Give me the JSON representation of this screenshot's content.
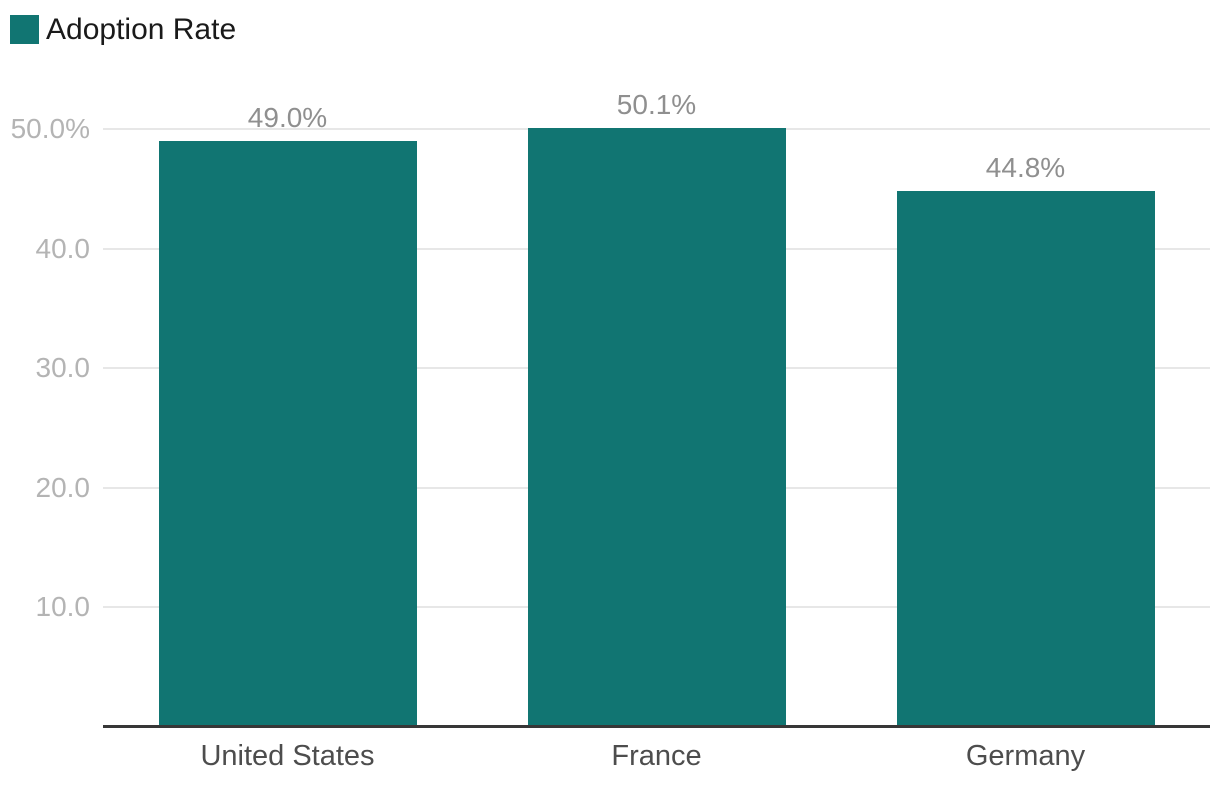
{
  "chart_data": {
    "type": "bar",
    "title": "",
    "xlabel": "",
    "ylabel": "",
    "legend": {
      "label": "Adoption Rate",
      "position": "top-left"
    },
    "categories": [
      "United States",
      "France",
      "Germany"
    ],
    "values": [
      49.0,
      50.1,
      44.8
    ],
    "value_labels": [
      "49.0%",
      "50.1%",
      "44.8%"
    ],
    "ylim": [
      0,
      55
    ],
    "yticks": [
      {
        "value": 10,
        "label": "10.0"
      },
      {
        "value": 20,
        "label": "20.0"
      },
      {
        "value": 30,
        "label": "30.0"
      },
      {
        "value": 40,
        "label": "40.0"
      },
      {
        "value": 50,
        "label": "50.0%"
      }
    ],
    "grid": "horizontal",
    "colors": {
      "bar": "#117572",
      "gridline": "#e7e7e7",
      "axis_line": "#373737",
      "ytick_label": "#b4b4b4",
      "value_label": "#8f8f8f",
      "category_label": "#4d4d4d",
      "legend_label": "#1a1a1a",
      "background": "#ffffff"
    }
  }
}
